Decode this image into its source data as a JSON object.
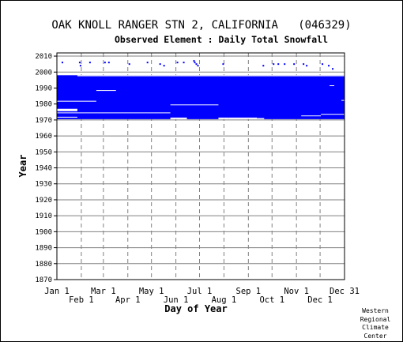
{
  "chart_data": {
    "type": "heatmap",
    "title": "OAK KNOLL RANGER STN 2, CALIFORNIA   (046329)",
    "subtitle": "Observed Element : Daily Total Snowfall",
    "xlabel": "Day of Year",
    "ylabel": "Year",
    "ylim": [
      1870,
      2012
    ],
    "yticks": [
      1870,
      1880,
      1890,
      1900,
      1910,
      1920,
      1930,
      1940,
      1950,
      1960,
      1970,
      1980,
      1990,
      2000,
      2010
    ],
    "xlim": [
      1,
      366
    ],
    "xticks_top": [
      {
        "label": "Jan 1",
        "day": 1
      },
      {
        "label": "Mar 1",
        "day": 60
      },
      {
        "label": "May 1",
        "day": 121
      },
      {
        "label": "Jul 1",
        "day": 182
      },
      {
        "label": "Sep 1",
        "day": 244
      },
      {
        "label": "Nov 1",
        "day": 305
      },
      {
        "label": "Dec 31",
        "day": 366
      }
    ],
    "xticks_bottom": [
      {
        "label": "Feb 1",
        "day": 32
      },
      {
        "label": "Apr 1",
        "day": 91
      },
      {
        "label": "Jun 1",
        "day": 152
      },
      {
        "label": "Aug 1",
        "day": 213
      },
      {
        "label": "Oct 1",
        "day": 274
      },
      {
        "label": "Dec 1",
        "day": 335
      }
    ],
    "data_color": "#0000ff",
    "grid": true,
    "observed_block": {
      "start_year": 1970.5,
      "end_year": 1998,
      "start_day": 1,
      "end_day": 366
    },
    "gaps": [
      {
        "y0": 1975.5,
        "y1": 1977,
        "d0": 1,
        "d1": 27
      },
      {
        "y0": 1971.5,
        "y1": 1972,
        "d0": 1,
        "d1": 27
      },
      {
        "y0": 1997.4,
        "y1": 1998,
        "d0": 27,
        "d1": 366
      },
      {
        "y0": 1981.5,
        "y1": 1982,
        "d0": 1,
        "d1": 51
      },
      {
        "y0": 1974.4,
        "y1": 1974.7,
        "d0": 1,
        "d1": 145
      },
      {
        "y0": 1988.4,
        "y1": 1988.7,
        "d0": 51,
        "d1": 76
      },
      {
        "y0": 1979.4,
        "y1": 1979.7,
        "d0": 145,
        "d1": 206
      },
      {
        "y0": 1970.5,
        "y1": 1971.5,
        "d0": 145,
        "d1": 166
      },
      {
        "y0": 1970.5,
        "y1": 1971.5,
        "d0": 206,
        "d1": 219
      },
      {
        "y0": 1970.5,
        "y1": 1971.5,
        "d0": 219,
        "d1": 255
      },
      {
        "y0": 1970.5,
        "y1": 1971.2,
        "d0": 255,
        "d1": 264
      },
      {
        "y0": 1972.5,
        "y1": 1972.8,
        "d0": 311,
        "d1": 336
      },
      {
        "y0": 1973.5,
        "y1": 1973.8,
        "d0": 336,
        "d1": 366
      },
      {
        "y0": 1991.4,
        "y1": 1991.7,
        "d0": 347,
        "d1": 353
      },
      {
        "y0": 1982.2,
        "y1": 1982.5,
        "d0": 362,
        "d1": 366
      }
    ],
    "scattered_points": [
      {
        "year": 2006,
        "day": 8
      },
      {
        "year": 2006,
        "day": 30
      },
      {
        "year": 2006,
        "day": 43
      },
      {
        "year": 2004,
        "day": 31
      },
      {
        "year": 2006,
        "day": 62
      },
      {
        "year": 2006,
        "day": 67
      },
      {
        "year": 2005,
        "day": 93
      },
      {
        "year": 2006,
        "day": 116
      },
      {
        "year": 2005,
        "day": 132
      },
      {
        "year": 2004,
        "day": 137
      },
      {
        "year": 2006,
        "day": 154
      },
      {
        "year": 2006,
        "day": 162
      },
      {
        "year": 2007,
        "day": 175
      },
      {
        "year": 2006,
        "day": 176
      },
      {
        "year": 2005,
        "day": 178
      },
      {
        "year": 2004,
        "day": 180
      },
      {
        "year": 2005,
        "day": 212
      },
      {
        "year": 2004,
        "day": 263
      },
      {
        "year": 2005,
        "day": 276
      },
      {
        "year": 2005,
        "day": 282
      },
      {
        "year": 2005,
        "day": 290
      },
      {
        "year": 2005,
        "day": 302
      },
      {
        "year": 2005,
        "day": 314
      },
      {
        "year": 2004,
        "day": 318
      },
      {
        "year": 2005,
        "day": 338
      },
      {
        "year": 2004,
        "day": 346
      },
      {
        "year": 2002,
        "day": 351
      }
    ]
  },
  "credit": [
    "Western",
    "Regional",
    "Climate",
    "Center"
  ]
}
